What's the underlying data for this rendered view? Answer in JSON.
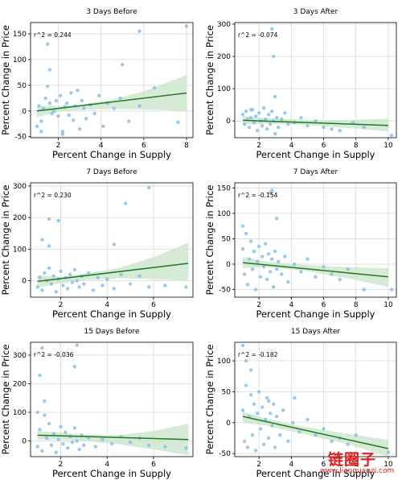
{
  "chart_data": [
    {
      "type": "scatter",
      "title": "3 Days Before",
      "xlabel": "Percent Change in Supply",
      "ylabel": "Percent Change in Price",
      "xlim": [
        0.7,
        8.3
      ],
      "ylim": [
        -52,
        172
      ],
      "xticks": [
        2,
        4,
        6,
        8
      ],
      "yticks": [
        -50,
        0,
        50,
        100,
        150
      ],
      "annotation": "r^2 = 0.244",
      "regression": {
        "x": [
          1.0,
          8.0
        ],
        "y": [
          0,
          35
        ]
      },
      "ci": {
        "x": [
          1.0,
          2.0,
          3.0,
          4.5,
          6.0,
          8.0
        ],
        "lo": [
          -12,
          -2,
          2,
          4,
          3,
          0
        ],
        "hi": [
          10,
          9,
          12,
          22,
          38,
          70
        ]
      },
      "points": [
        [
          1.0,
          -30
        ],
        [
          1.1,
          10
        ],
        [
          1.2,
          -20
        ],
        [
          1.3,
          5
        ],
        [
          1.4,
          25
        ],
        [
          1.5,
          48
        ],
        [
          1.6,
          15
        ],
        [
          1.7,
          -5
        ],
        [
          1.8,
          0
        ],
        [
          1.9,
          20
        ],
        [
          2.0,
          -10
        ],
        [
          2.1,
          30
        ],
        [
          2.2,
          -40
        ],
        [
          2.3,
          8
        ],
        [
          2.4,
          15
        ],
        [
          2.5,
          -8
        ],
        [
          2.6,
          35
        ],
        [
          2.7,
          -18
        ],
        [
          2.8,
          10
        ],
        [
          2.9,
          40
        ],
        [
          3.0,
          -35
        ],
        [
          3.1,
          20
        ],
        [
          3.2,
          5
        ],
        [
          3.3,
          -15
        ],
        [
          3.5,
          12
        ],
        [
          3.7,
          -5
        ],
        [
          3.9,
          30
        ],
        [
          4.1,
          -30
        ],
        [
          4.3,
          15
        ],
        [
          4.6,
          5
        ],
        [
          4.9,
          25
        ],
        [
          5.3,
          -20
        ],
        [
          5.8,
          10
        ],
        [
          1.5,
          130
        ],
        [
          1.6,
          80
        ],
        [
          5.8,
          155
        ],
        [
          8.0,
          165
        ],
        [
          5.0,
          90
        ],
        [
          7.6,
          -22
        ],
        [
          6.5,
          45
        ],
        [
          1.2,
          -40
        ],
        [
          2.2,
          -45
        ]
      ]
    },
    {
      "type": "scatter",
      "title": "3 Days After",
      "xlabel": "Percent Change in Supply",
      "ylabel": "Percent Change in Price",
      "xlim": [
        0.5,
        10.5
      ],
      "ylim": [
        -52,
        305
      ],
      "xticks": [
        2,
        4,
        6,
        8,
        10
      ],
      "yticks": [
        0,
        100,
        200,
        300
      ],
      "annotation": "r^2 = -0.074",
      "regression": {
        "x": [
          1.0,
          10.0
        ],
        "y": [
          2,
          -14
        ]
      },
      "ci": {
        "x": [
          1.0,
          2.5,
          5.0,
          7.5,
          10.0
        ],
        "lo": [
          -12,
          -8,
          -13,
          -22,
          -32
        ],
        "hi": [
          15,
          9,
          3,
          3,
          7
        ]
      },
      "points": [
        [
          1.0,
          20
        ],
        [
          1.1,
          -10
        ],
        [
          1.2,
          30
        ],
        [
          1.3,
          5
        ],
        [
          1.4,
          -20
        ],
        [
          1.5,
          10
        ],
        [
          1.6,
          35
        ],
        [
          1.7,
          -5
        ],
        [
          1.8,
          15
        ],
        [
          1.9,
          -30
        ],
        [
          2.0,
          25
        ],
        [
          2.1,
          0
        ],
        [
          2.2,
          -15
        ],
        [
          2.3,
          40
        ],
        [
          2.4,
          5
        ],
        [
          2.5,
          -25
        ],
        [
          2.6,
          20
        ],
        [
          2.7,
          -10
        ],
        [
          2.8,
          30
        ],
        [
          2.9,
          0
        ],
        [
          3.0,
          -40
        ],
        [
          3.1,
          10
        ],
        [
          3.2,
          -20
        ],
        [
          3.4,
          5
        ],
        [
          3.6,
          25
        ],
        [
          3.8,
          -10
        ],
        [
          4.2,
          -5
        ],
        [
          4.6,
          10
        ],
        [
          5.0,
          -15
        ],
        [
          5.5,
          0
        ],
        [
          6.0,
          -20
        ],
        [
          6.5,
          -25
        ],
        [
          7.0,
          -30
        ],
        [
          7.8,
          -5
        ],
        [
          8.5,
          -20
        ],
        [
          10.2,
          -45
        ],
        [
          2.8,
          285
        ],
        [
          2.9,
          200
        ],
        [
          3.0,
          75
        ],
        [
          1.5,
          35
        ]
      ]
    },
    {
      "type": "scatter",
      "title": "7 Days Before",
      "xlabel": "Percent Change in Supply",
      "ylabel": "Percent Change in Price",
      "xlim": [
        0.7,
        7.7
      ],
      "ylim": [
        -52,
        310
      ],
      "xticks": [
        2,
        4,
        6
      ],
      "yticks": [
        0,
        100,
        200,
        300
      ],
      "annotation": "r^2 = 0.230",
      "regression": {
        "x": [
          1.0,
          7.5
        ],
        "y": [
          -2,
          55
        ]
      },
      "ci": {
        "x": [
          1.0,
          2.0,
          3.0,
          4.5,
          6.0,
          7.5
        ],
        "lo": [
          -22,
          -8,
          2,
          8,
          5,
          0
        ],
        "hi": [
          18,
          12,
          22,
          40,
          75,
          120
        ]
      },
      "points": [
        [
          1.0,
          -20
        ],
        [
          1.1,
          10
        ],
        [
          1.2,
          -30
        ],
        [
          1.3,
          25
        ],
        [
          1.4,
          0
        ],
        [
          1.5,
          40
        ],
        [
          1.6,
          -10
        ],
        [
          1.7,
          15
        ],
        [
          1.8,
          -35
        ],
        [
          1.9,
          5
        ],
        [
          2.0,
          30
        ],
        [
          2.1,
          -15
        ],
        [
          2.2,
          10
        ],
        [
          2.3,
          -25
        ],
        [
          2.4,
          20
        ],
        [
          2.5,
          -5
        ],
        [
          2.6,
          35
        ],
        [
          2.7,
          0
        ],
        [
          2.8,
          -20
        ],
        [
          2.9,
          15
        ],
        [
          3.0,
          -10
        ],
        [
          3.2,
          25
        ],
        [
          3.4,
          -30
        ],
        [
          3.6,
          10
        ],
        [
          3.8,
          -15
        ],
        [
          4.0,
          5
        ],
        [
          4.3,
          -25
        ],
        [
          4.6,
          20
        ],
        [
          5.0,
          -10
        ],
        [
          5.4,
          15
        ],
        [
          5.8,
          -20
        ],
        [
          6.5,
          -15
        ],
        [
          7.4,
          -20
        ],
        [
          1.5,
          195
        ],
        [
          5.8,
          295
        ],
        [
          4.8,
          245
        ],
        [
          4.3,
          115
        ],
        [
          1.5,
          110
        ],
        [
          1.2,
          130
        ],
        [
          1.9,
          190
        ]
      ]
    },
    {
      "type": "scatter",
      "title": "7 Days After",
      "xlabel": "Percent Change in Supply",
      "ylabel": "Percent Change in Price",
      "xlim": [
        0.5,
        10.5
      ],
      "ylim": [
        -65,
        160
      ],
      "xticks": [
        2,
        4,
        6,
        8,
        10
      ],
      "yticks": [
        -50,
        0,
        50,
        100,
        150
      ],
      "annotation": "r^2 = -0.154",
      "regression": {
        "x": [
          1.0,
          10.0
        ],
        "y": [
          3,
          -25
        ]
      },
      "ci": {
        "x": [
          1.0,
          2.5,
          5.0,
          7.5,
          10.0
        ],
        "lo": [
          -8,
          -6,
          -14,
          -28,
          -45
        ],
        "hi": [
          14,
          5,
          -2,
          -6,
          -8
        ]
      },
      "points": [
        [
          1.0,
          30
        ],
        [
          1.1,
          -20
        ],
        [
          1.2,
          60
        ],
        [
          1.3,
          -40
        ],
        [
          1.4,
          10
        ],
        [
          1.5,
          45
        ],
        [
          1.6,
          -10
        ],
        [
          1.7,
          25
        ],
        [
          1.8,
          -50
        ],
        [
          1.9,
          5
        ],
        [
          2.0,
          35
        ],
        [
          2.1,
          -25
        ],
        [
          2.2,
          15
        ],
        [
          2.3,
          -5
        ],
        [
          2.4,
          40
        ],
        [
          2.5,
          -30
        ],
        [
          2.6,
          20
        ],
        [
          2.7,
          -15
        ],
        [
          2.8,
          10
        ],
        [
          2.9,
          -45
        ],
        [
          3.0,
          25
        ],
        [
          3.1,
          -10
        ],
        [
          3.2,
          5
        ],
        [
          3.4,
          -20
        ],
        [
          3.6,
          15
        ],
        [
          3.8,
          -35
        ],
        [
          4.2,
          0
        ],
        [
          4.6,
          -15
        ],
        [
          5.0,
          10
        ],
        [
          5.5,
          -25
        ],
        [
          6.0,
          -5
        ],
        [
          6.5,
          -20
        ],
        [
          7.0,
          -30
        ],
        [
          7.5,
          -10
        ],
        [
          8.5,
          -50
        ],
        [
          10.2,
          -50
        ],
        [
          2.7,
          140
        ],
        [
          2.8,
          145
        ],
        [
          3.1,
          90
        ],
        [
          1.0,
          75
        ]
      ]
    },
    {
      "type": "scatter",
      "title": "15 Days Before",
      "xlabel": "Percent Change in Supply",
      "ylabel": "Percent Change in Price",
      "xlim": [
        0.7,
        7.7
      ],
      "ylim": [
        -55,
        345
      ],
      "xticks": [
        2,
        4,
        6
      ],
      "yticks": [
        0,
        100,
        200,
        300
      ],
      "annotation": "r^2 = -0.036",
      "regression": {
        "x": [
          1.0,
          7.5
        ],
        "y": [
          20,
          5
        ]
      },
      "ci": {
        "x": [
          1.0,
          2.0,
          3.0,
          4.5,
          6.0,
          7.5
        ],
        "lo": [
          5,
          5,
          0,
          -12,
          -30,
          -50
        ],
        "hi": [
          35,
          28,
          22,
          20,
          35,
          60
        ]
      },
      "points": [
        [
          1.0,
          -20
        ],
        [
          1.1,
          40
        ],
        [
          1.2,
          -35
        ],
        [
          1.3,
          90
        ],
        [
          1.4,
          10
        ],
        [
          1.5,
          60
        ],
        [
          1.6,
          -15
        ],
        [
          1.7,
          25
        ],
        [
          1.8,
          -40
        ],
        [
          1.9,
          5
        ],
        [
          2.0,
          50
        ],
        [
          2.1,
          -10
        ],
        [
          2.2,
          30
        ],
        [
          2.3,
          -25
        ],
        [
          2.4,
          15
        ],
        [
          2.5,
          -5
        ],
        [
          2.6,
          45
        ],
        [
          2.7,
          0
        ],
        [
          2.8,
          -30
        ],
        [
          2.9,
          20
        ],
        [
          3.0,
          -15
        ],
        [
          3.2,
          10
        ],
        [
          3.5,
          -20
        ],
        [
          3.8,
          5
        ],
        [
          4.2,
          -10
        ],
        [
          4.6,
          15
        ],
        [
          5.0,
          -5
        ],
        [
          5.4,
          10
        ],
        [
          5.8,
          -15
        ],
        [
          6.5,
          -20
        ],
        [
          7.4,
          -25
        ],
        [
          1.2,
          325
        ],
        [
          2.7,
          335
        ],
        [
          1.1,
          230
        ],
        [
          2.6,
          260
        ],
        [
          1.0,
          100
        ],
        [
          1.3,
          140
        ]
      ]
    },
    {
      "type": "scatter",
      "title": "15 Days After",
      "xlabel": "Percent Change in Supply",
      "ylabel": "Percent Change in Price",
      "xlim": [
        0.5,
        10.5
      ],
      "ylim": [
        -55,
        130
      ],
      "xticks": [
        2,
        4,
        6,
        8,
        10
      ],
      "yticks": [
        -50,
        0,
        50,
        100
      ],
      "annotation": "r^2 = -0.182",
      "regression": {
        "x": [
          1.0,
          10.0
        ],
        "y": [
          10,
          -42
        ]
      },
      "ci": {
        "x": [
          1.0,
          2.5,
          5.0,
          7.5,
          10.0
        ],
        "lo": [
          0,
          -5,
          -20,
          -35,
          -55
        ],
        "hi": [
          18,
          6,
          -8,
          -18,
          -28
        ]
      },
      "points": [
        [
          1.0,
          20
        ],
        [
          1.1,
          -30
        ],
        [
          1.2,
          60
        ],
        [
          1.3,
          -40
        ],
        [
          1.4,
          10
        ],
        [
          1.5,
          45
        ],
        [
          1.6,
          -20
        ],
        [
          1.7,
          30
        ],
        [
          1.8,
          -45
        ],
        [
          1.9,
          15
        ],
        [
          2.0,
          50
        ],
        [
          2.1,
          -10
        ],
        [
          2.2,
          25
        ],
        [
          2.3,
          -35
        ],
        [
          2.4,
          5
        ],
        [
          2.5,
          40
        ],
        [
          2.6,
          -25
        ],
        [
          2.7,
          15
        ],
        [
          2.8,
          -5
        ],
        [
          2.9,
          30
        ],
        [
          3.0,
          -40
        ],
        [
          3.1,
          10
        ],
        [
          3.3,
          -20
        ],
        [
          3.5,
          20
        ],
        [
          3.8,
          -30
        ],
        [
          4.1,
          0
        ],
        [
          4.5,
          -15
        ],
        [
          5.0,
          5
        ],
        [
          5.5,
          -20
        ],
        [
          6.0,
          -10
        ],
        [
          6.5,
          -30
        ],
        [
          7.0,
          -25
        ],
        [
          7.5,
          -35
        ],
        [
          8.0,
          -20
        ],
        [
          10.0,
          -48
        ],
        [
          1.0,
          125
        ],
        [
          1.2,
          100
        ],
        [
          1.5,
          85
        ],
        [
          2.6,
          35
        ],
        [
          4.2,
          40
        ]
      ]
    }
  ],
  "watermark": {
    "primary": "链圈子",
    "secondary": "www.lianquanzi.com"
  },
  "colors": {
    "points": "#87bfea",
    "line": "#217a21",
    "band": "#c8e4c8",
    "grid": "#d9d9d9",
    "text": "#000000"
  }
}
